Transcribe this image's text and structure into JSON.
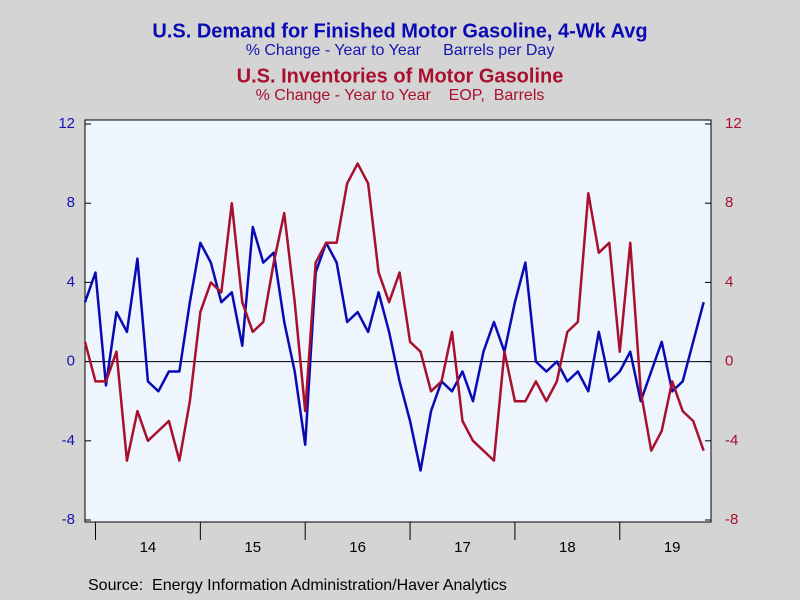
{
  "chart_data": {
    "type": "line",
    "subtitle": "% Change - Year to Year     Barrels per Day",
    "subtitle2": "% Change - Year to Year    EOP,  Barrels",
    "source": "Source:  Energy Information Administration/Haver Analytics",
    "x": [
      2013.9,
      2014.0,
      2014.1,
      2014.2,
      2014.3,
      2014.4,
      2014.5,
      2014.6,
      2014.7,
      2014.8,
      2014.9,
      2015.0,
      2015.1,
      2015.2,
      2015.3,
      2015.4,
      2015.5,
      2015.6,
      2015.7,
      2015.8,
      2015.9,
      2016.0,
      2016.1,
      2016.2,
      2016.3,
      2016.4,
      2016.5,
      2016.6,
      2016.7,
      2016.8,
      2016.9,
      2017.0,
      2017.1,
      2017.2,
      2017.3,
      2017.4,
      2017.5,
      2017.6,
      2017.7,
      2017.8,
      2017.9,
      2018.0,
      2018.1,
      2018.2,
      2018.3,
      2018.4,
      2018.5,
      2018.6,
      2018.7,
      2018.8,
      2018.9,
      2019.0,
      2019.1,
      2019.2,
      2019.3,
      2019.4,
      2019.5,
      2019.6,
      2019.7,
      2019.8
    ],
    "series": [
      {
        "name": "U.S. Demand for Finished Motor Gasoline, 4-Wk Avg",
        "color": "#0a0ab4",
        "axis": "y",
        "values": [
          3.0,
          4.5,
          -1.2,
          2.5,
          1.5,
          5.2,
          -1.0,
          -1.5,
          -0.5,
          -0.5,
          3.0,
          6.0,
          5.0,
          3.0,
          3.5,
          0.8,
          6.8,
          5.0,
          5.5,
          2.0,
          -0.5,
          -4.2,
          4.5,
          6.0,
          5.0,
          2.0,
          2.5,
          1.5,
          3.5,
          1.5,
          -1.0,
          -3.0,
          -5.5,
          -2.5,
          -1.0,
          -1.5,
          -0.5,
          -2.0,
          0.5,
          2.0,
          0.5,
          3.0,
          5.0,
          0.0,
          -0.5,
          0.0,
          -1.0,
          -0.5,
          -1.5,
          1.5,
          -1.0,
          -0.5,
          0.5,
          -2.0,
          -0.5,
          1.0,
          -1.5,
          -1.0,
          1.0,
          3.0
        ]
      },
      {
        "name": "U.S. Inventories of Motor Gasoline",
        "color": "#a8102e",
        "axis": "y2",
        "values": [
          1.0,
          -1.0,
          -1.0,
          0.5,
          -5.0,
          -2.5,
          -4.0,
          -3.5,
          -3.0,
          -5.0,
          -2.0,
          2.5,
          4.0,
          3.5,
          8.0,
          3.0,
          1.5,
          2.0,
          5.0,
          7.5,
          3.0,
          -2.5,
          5.0,
          6.0,
          6.0,
          9.0,
          10.0,
          9.0,
          4.5,
          3.0,
          4.5,
          1.0,
          0.5,
          -1.5,
          -1.0,
          1.5,
          -3.0,
          -4.0,
          -4.5,
          -5.0,
          0.5,
          -2.0,
          -2.0,
          -1.0,
          -2.0,
          -1.0,
          1.5,
          2.0,
          8.5,
          5.5,
          6.0,
          0.5,
          6.0,
          -1.5,
          -4.5,
          -3.5,
          -1.0,
          -2.5,
          -3.0,
          -4.5
        ]
      }
    ],
    "xlim": [
      2013.9,
      2019.87
    ],
    "xticks": [
      {
        "value": 2014.5,
        "label": "14"
      },
      {
        "value": 2015.5,
        "label": "15"
      },
      {
        "value": 2016.5,
        "label": "16"
      },
      {
        "value": 2017.5,
        "label": "17"
      },
      {
        "value": 2018.5,
        "label": "18"
      },
      {
        "value": 2019.5,
        "label": "19"
      }
    ],
    "ylim": [
      -8,
      12
    ],
    "yticks": [
      -8,
      -4,
      0,
      4,
      8,
      12
    ],
    "y2lim": [
      -8,
      12
    ],
    "y2ticks": [
      -8,
      -4,
      0,
      4,
      8,
      12
    ]
  }
}
